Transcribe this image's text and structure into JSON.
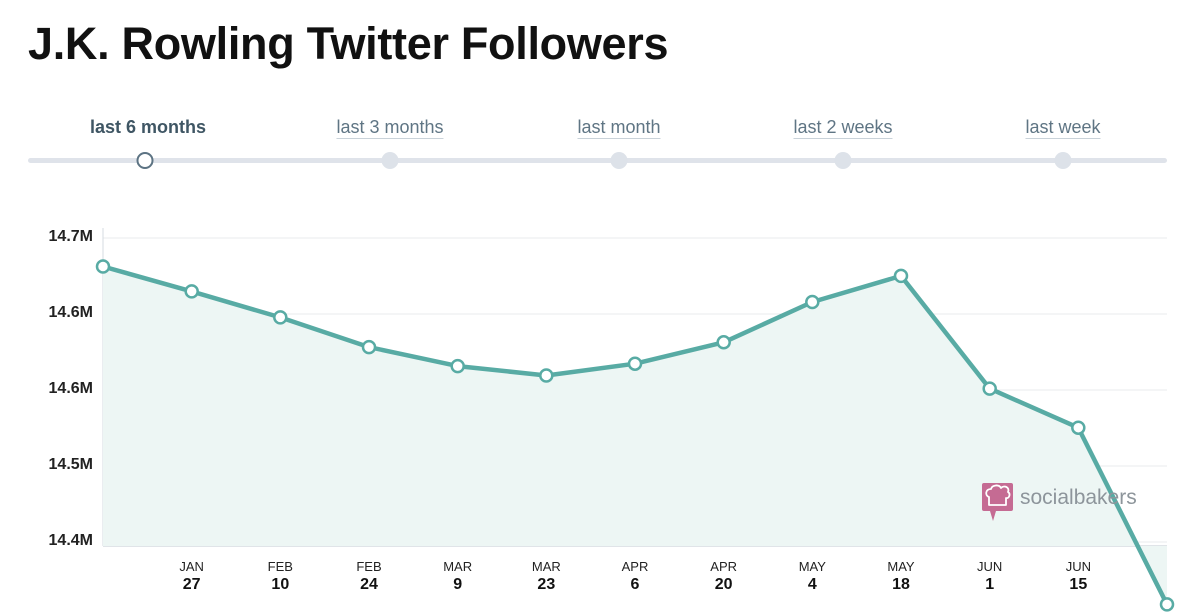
{
  "title": "J.K. Rowling Twitter Followers",
  "range_selector": {
    "options": [
      {
        "label": "last 6 months",
        "active": true
      },
      {
        "label": "last 3 months",
        "active": false
      },
      {
        "label": "last month",
        "active": false
      },
      {
        "label": "last 2 weeks",
        "active": false
      },
      {
        "label": "last week",
        "active": false
      }
    ]
  },
  "watermark": {
    "text": "socialbakers",
    "icon": "chef-hat-icon"
  },
  "colors": {
    "line": "#58aba4",
    "fill": "#edf6f4",
    "active_option": "#5c7383",
    "inactive_dot": "#dde2e9",
    "logo": "#c56b93"
  },
  "chart_data": {
    "type": "line",
    "title": "J.K. Rowling Twitter Followers",
    "y_tick_labels": [
      "14.7M",
      "14.6M",
      "14.6M",
      "14.5M",
      "14.4M"
    ],
    "ylim": [
      14.43,
      14.71
    ],
    "x_tick_labels": [
      {
        "month": "JAN",
        "day": "27"
      },
      {
        "month": "FEB",
        "day": "10"
      },
      {
        "month": "FEB",
        "day": "24"
      },
      {
        "month": "MAR",
        "day": "9"
      },
      {
        "month": "MAR",
        "day": "23"
      },
      {
        "month": "APR",
        "day": "6"
      },
      {
        "month": "APR",
        "day": "20"
      },
      {
        "month": "MAY",
        "day": "4"
      },
      {
        "month": "MAY",
        "day": "18"
      },
      {
        "month": "JUN",
        "day": "1"
      },
      {
        "month": "JUN",
        "day": "15"
      }
    ],
    "series": [
      {
        "values": [
          14.686,
          14.665,
          14.643,
          14.618,
          14.602,
          14.594,
          14.604,
          14.622,
          14.656,
          14.678,
          14.583,
          14.55,
          14.401
        ]
      }
    ],
    "grid": true,
    "legend": "none"
  }
}
